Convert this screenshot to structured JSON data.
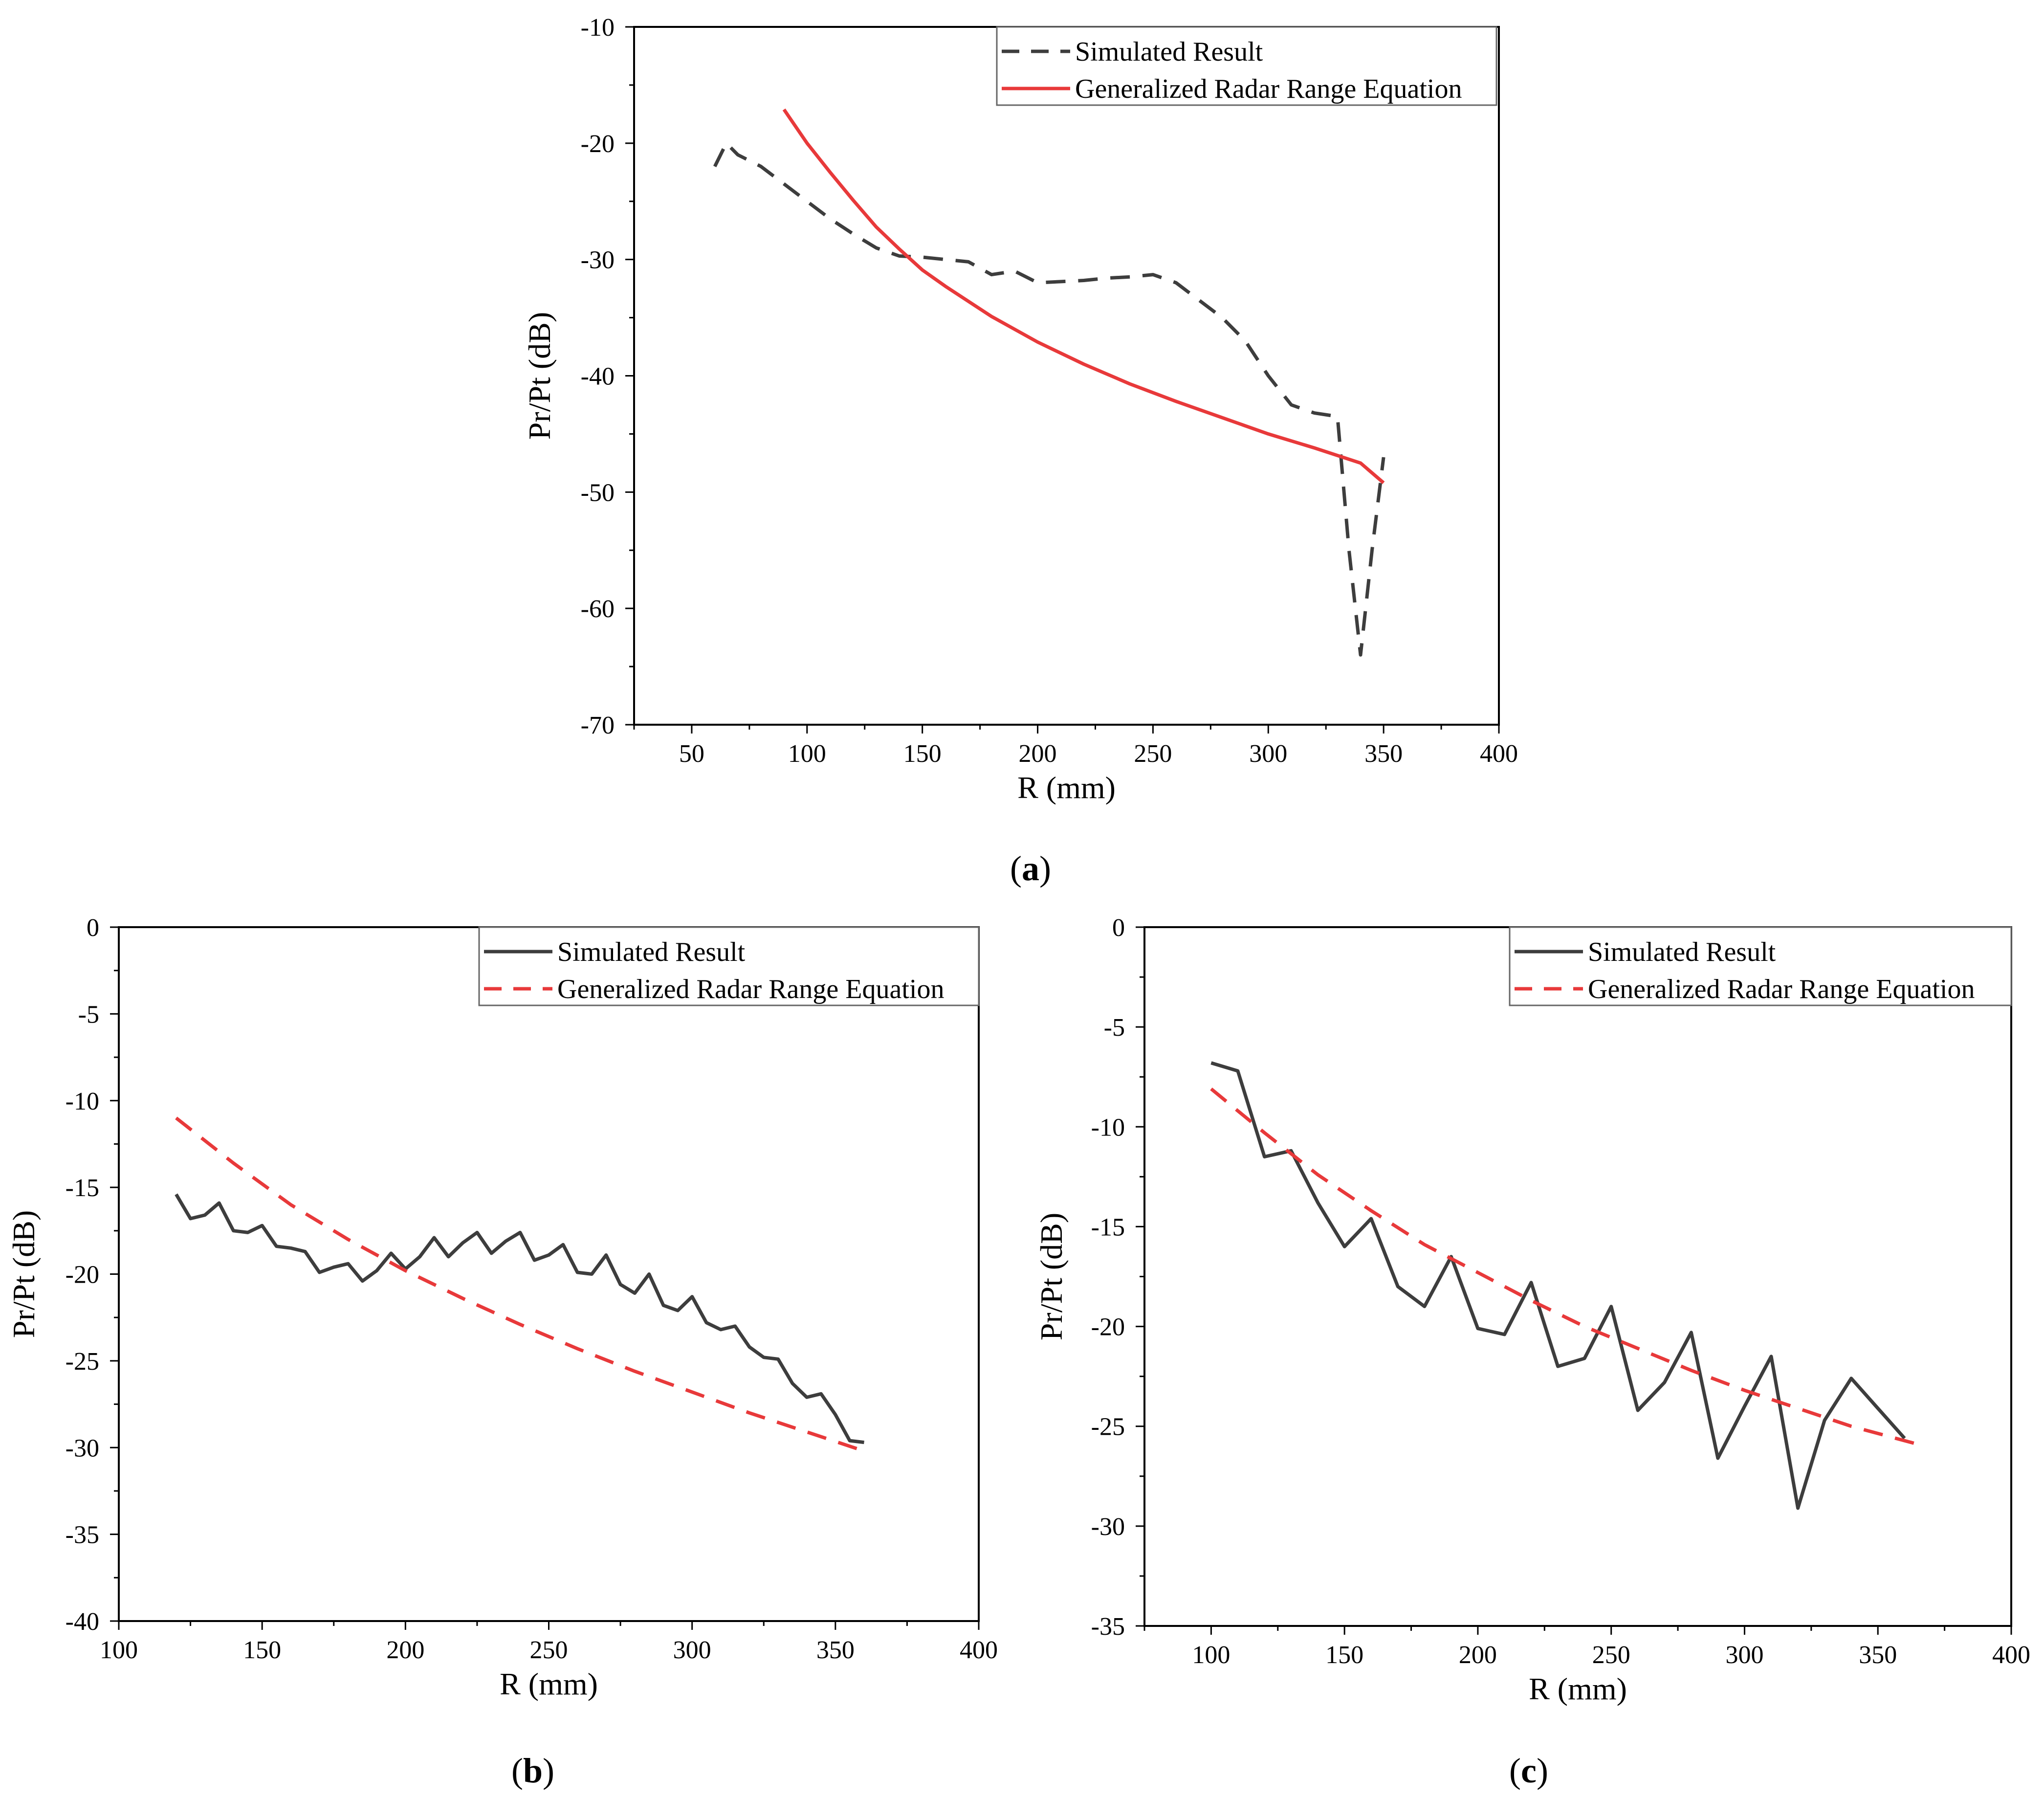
{
  "captions": {
    "a_open": "(",
    "a_letter": "a",
    "a_close": ")",
    "b_open": "(",
    "b_letter": "b",
    "b_close": ")",
    "c_open": "(",
    "c_letter": "c",
    "c_close": ")"
  },
  "chart_data": [
    {
      "id": "a",
      "type": "line",
      "xlabel": "R (mm)",
      "ylabel": "Pr/Pt (dB)",
      "xlim": [
        25,
        400
      ],
      "ylim": [
        -70,
        -10
      ],
      "xticks": [
        50,
        100,
        150,
        200,
        250,
        300,
        350,
        400
      ],
      "yticks": [
        -10,
        -20,
        -30,
        -40,
        -50,
        -60,
        -70
      ],
      "xtick_labels": [
        "50",
        "100",
        "150",
        "200",
        "250",
        "300",
        "350",
        "400"
      ],
      "ytick_labels": [
        "-10",
        "-20",
        "-30",
        "-40",
        "-50",
        "-60",
        "-70"
      ],
      "legend_position": "top-right",
      "series": [
        {
          "name": "Simulated Result",
          "style": "dashed",
          "color": "#3d3d3d",
          "x": [
            60,
            65,
            70,
            80,
            90,
            100,
            110,
            120,
            130,
            140,
            150,
            160,
            170,
            180,
            190,
            195,
            200,
            210,
            220,
            230,
            240,
            250,
            260,
            270,
            280,
            290,
            300,
            310,
            320,
            330,
            335,
            340,
            345,
            350
          ],
          "y": [
            -22,
            -20,
            -21,
            -22,
            -23.5,
            -25,
            -26.5,
            -27.8,
            -29,
            -29.7,
            -29.8,
            -30,
            -30.2,
            -31.3,
            -31,
            -31.5,
            -32,
            -31.9,
            -31.8,
            -31.6,
            -31.5,
            -31.3,
            -32,
            -33.5,
            -35,
            -37,
            -40,
            -42.5,
            -43.2,
            -43.5,
            -55,
            -64,
            -55,
            -47
          ]
        },
        {
          "name": "Generalized Radar Range Equation",
          "style": "solid",
          "color": "#e8393a",
          "x": [
            90,
            100,
            110,
            120,
            130,
            140,
            150,
            160,
            180,
            200,
            220,
            240,
            260,
            280,
            300,
            320,
            340,
            350
          ],
          "y": [
            -17.1,
            -20,
            -22.5,
            -24.9,
            -27.2,
            -29.1,
            -30.9,
            -32.3,
            -34.9,
            -37.1,
            -39,
            -40.7,
            -42.2,
            -43.6,
            -45,
            -46.2,
            -47.5,
            -49.2
          ]
        }
      ]
    },
    {
      "id": "b",
      "type": "line",
      "xlabel": "R (mm)",
      "ylabel": "Pr/Pt (dB)",
      "xlim": [
        100,
        400
      ],
      "ylim": [
        -40,
        0
      ],
      "xticks": [
        100,
        150,
        200,
        250,
        300,
        350,
        400
      ],
      "yticks": [
        0,
        -5,
        -10,
        -15,
        -20,
        -25,
        -30,
        -35,
        -40
      ],
      "xtick_labels": [
        "100",
        "150",
        "200",
        "250",
        "300",
        "350",
        "400"
      ],
      "ytick_labels": [
        "0",
        "-5",
        "-10",
        "-15",
        "-20",
        "-25",
        "-30",
        "-35",
        "-40"
      ],
      "legend_position": "top-right",
      "series": [
        {
          "name": "Simulated Result",
          "style": "solid",
          "color": "#3d3d3d",
          "x": [
            120,
            125,
            130,
            135,
            140,
            145,
            150,
            155,
            160,
            165,
            170,
            175,
            180,
            185,
            190,
            195,
            200,
            205,
            210,
            215,
            220,
            225,
            230,
            235,
            240,
            245,
            250,
            255,
            260,
            265,
            270,
            275,
            280,
            285,
            290,
            295,
            300,
            305,
            310,
            315,
            320,
            325,
            330,
            335,
            340,
            345,
            350,
            355,
            360
          ],
          "y": [
            -15.4,
            -16.8,
            -16.6,
            -15.9,
            -17.5,
            -17.6,
            -17.2,
            -18.4,
            -18.5,
            -18.7,
            -19.9,
            -19.6,
            -19.4,
            -20.4,
            -19.8,
            -18.8,
            -19.7,
            -19,
            -17.9,
            -19,
            -18.2,
            -17.6,
            -18.8,
            -18.1,
            -17.6,
            -19.2,
            -18.9,
            -18.3,
            -19.9,
            -20,
            -18.9,
            -20.6,
            -21.1,
            -20,
            -21.8,
            -22.1,
            -21.3,
            -22.8,
            -23.2,
            -23,
            -24.2,
            -24.8,
            -24.9,
            -26.3,
            -27.1,
            -26.9,
            -28.1,
            -29.6,
            -29.7
          ]
        },
        {
          "name": "Generalized Radar Range Equation",
          "style": "dashed",
          "color": "#e8393a",
          "x": [
            120,
            140,
            160,
            180,
            200,
            220,
            240,
            260,
            280,
            300,
            320,
            340,
            360
          ],
          "y": [
            -11,
            -13.6,
            -16,
            -18,
            -19.8,
            -21.4,
            -22.9,
            -24.3,
            -25.6,
            -26.8,
            -28,
            -29.1,
            -30.2
          ]
        }
      ]
    },
    {
      "id": "c",
      "type": "line",
      "xlabel": "R (mm)",
      "ylabel": "Pr/Pt (dB)",
      "xlim": [
        75,
        400
      ],
      "ylim": [
        -35,
        0
      ],
      "xticks": [
        100,
        150,
        200,
        250,
        300,
        350,
        400
      ],
      "yticks": [
        0,
        -5,
        -10,
        -15,
        -20,
        -25,
        -30,
        -35
      ],
      "xtick_labels": [
        "100",
        "150",
        "200",
        "250",
        "300",
        "350",
        "400"
      ],
      "ytick_labels": [
        "0",
        "-5",
        "-10",
        "-15",
        "-20",
        "-25",
        "-30",
        "-35"
      ],
      "legend_position": "top-right",
      "series": [
        {
          "name": "Simulated Result",
          "style": "solid",
          "color": "#3d3d3d",
          "x": [
            100,
            110,
            120,
            130,
            140,
            150,
            160,
            170,
            180,
            190,
            200,
            210,
            220,
            230,
            240,
            250,
            260,
            270,
            280,
            290,
            300,
            310,
            320,
            330,
            340,
            350,
            360
          ],
          "y": [
            -6.8,
            -7.2,
            -11.5,
            -11.2,
            -13.8,
            -16,
            -14.6,
            -18,
            -19,
            -16.5,
            -20.1,
            -20.4,
            -17.8,
            -22,
            -21.6,
            -19,
            -24.2,
            -22.8,
            -20.3,
            -26.6,
            -24,
            -21.5,
            -29.1,
            -24.7,
            -22.6,
            -24.1,
            -25.6
          ]
        },
        {
          "name": "Generalized Radar Range Equation",
          "style": "dashed",
          "color": "#e8393a",
          "x": [
            100,
            120,
            140,
            160,
            180,
            200,
            220,
            240,
            260,
            280,
            300,
            320,
            340,
            365
          ],
          "y": [
            -8.1,
            -10.3,
            -12.4,
            -14.2,
            -15.9,
            -17.3,
            -18.7,
            -20,
            -21.1,
            -22.2,
            -23.2,
            -24.1,
            -25,
            -25.9
          ]
        }
      ]
    }
  ]
}
